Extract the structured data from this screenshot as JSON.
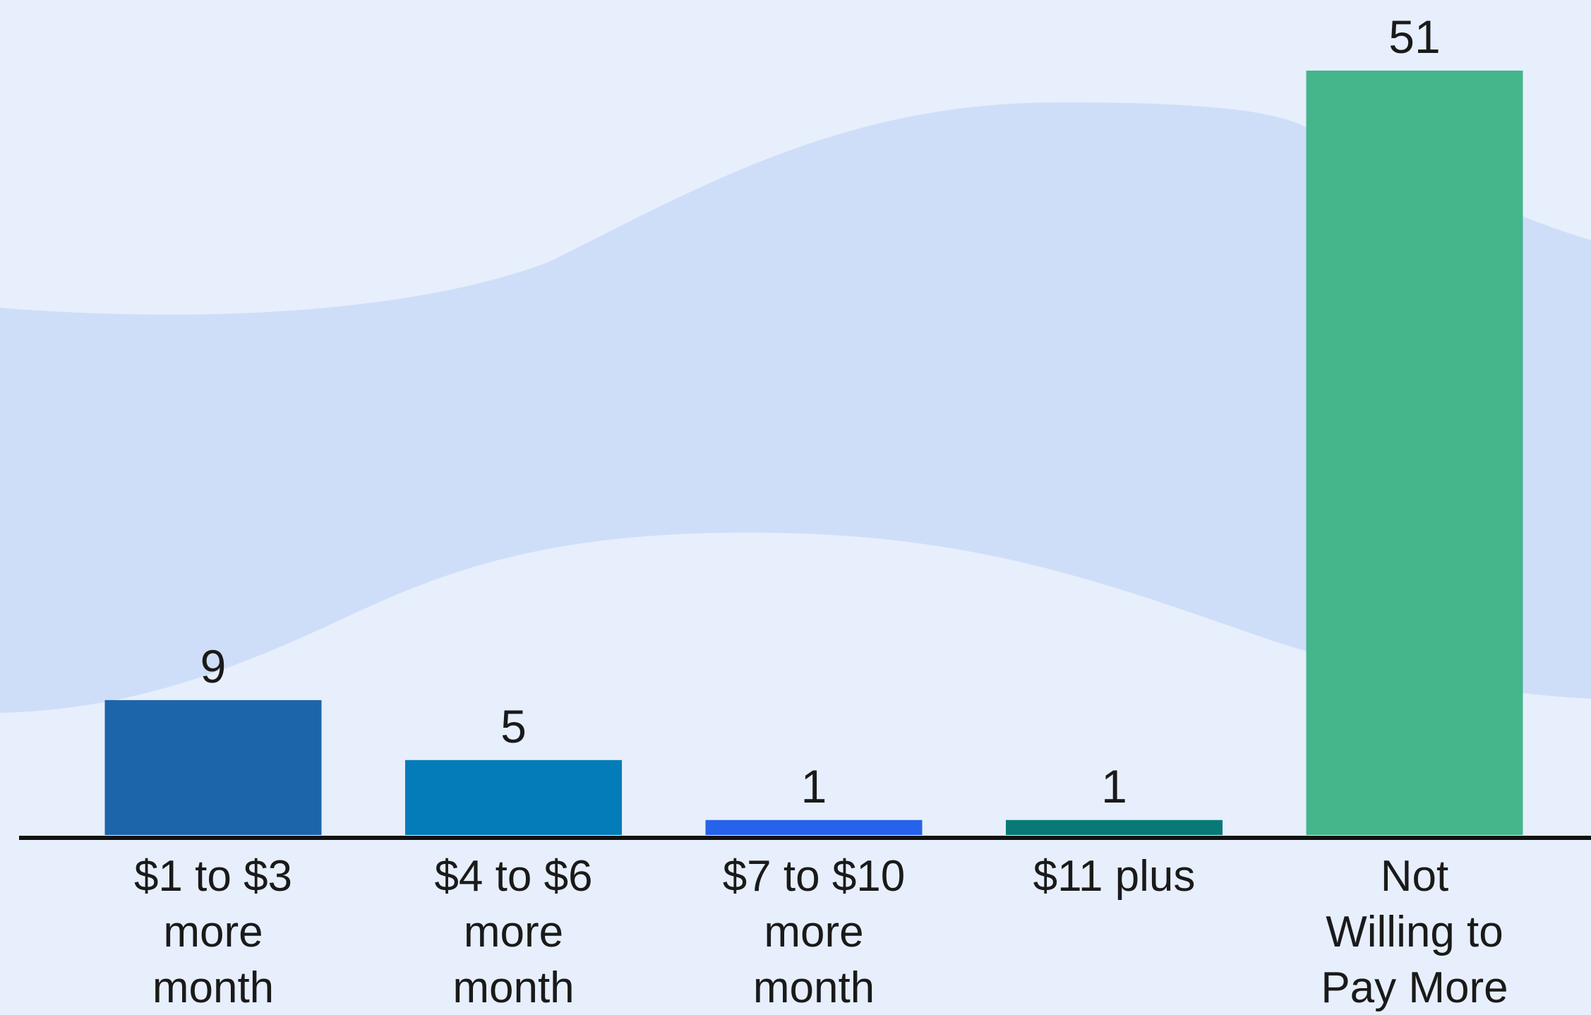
{
  "chart_data": {
    "type": "bar",
    "title": "",
    "xlabel": "",
    "ylabel": "",
    "categories": [
      [
        "$1 to $3",
        "more",
        "month"
      ],
      [
        "$4 to $6",
        "more",
        "month"
      ],
      [
        "$7 to $10",
        "more",
        "month"
      ],
      [
        "$11 plus"
      ],
      [
        "Not",
        "Willing to",
        "Pay More"
      ]
    ],
    "values": [
      9,
      5,
      1,
      1,
      51
    ],
    "value_labels": [
      "9",
      "5",
      "1",
      "1",
      "51"
    ],
    "colors": [
      "#1d65aa",
      "#037cb9",
      "#2563eb",
      "#077a76",
      "#45b58c"
    ],
    "ylim": [
      0,
      51
    ],
    "grid": false,
    "legend": "none"
  },
  "background": {
    "base_color": "#e7effc",
    "wave_color": "#cfdef8"
  },
  "axis": {
    "color": "#111111"
  }
}
